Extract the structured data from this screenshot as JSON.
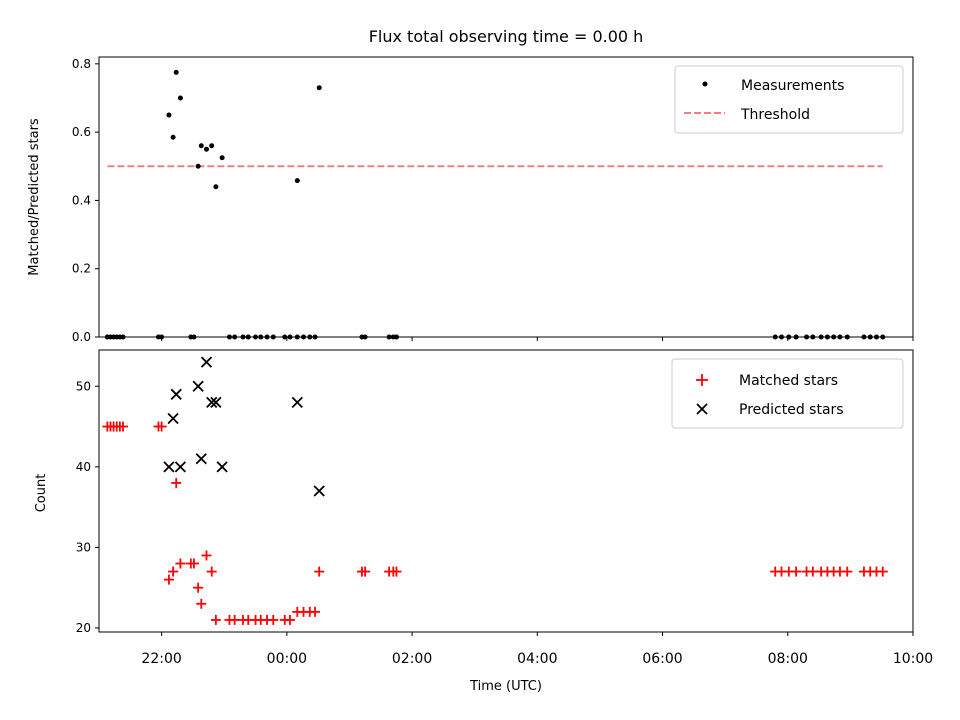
{
  "chart_data": [
    {
      "type": "scatter",
      "title": "Flux total observing time = 0.00 h",
      "xlabel": "",
      "ylabel": "Matched/Predicted stars",
      "xlim": [
        "21:00",
        "10:00"
      ],
      "ylim": [
        0,
        0.82
      ],
      "yticks": [
        "0.0",
        "0.2",
        "0.4",
        "0.6",
        "0.8"
      ],
      "legend_position": "top-right",
      "colors": {
        "Measurements": "#000000",
        "Threshold": "#f08080"
      },
      "series": [
        {
          "name": "Measurements",
          "marker": "dot",
          "points": [
            [
              "21:08",
              0
            ],
            [
              "21:11",
              0
            ],
            [
              "21:14",
              0
            ],
            [
              "21:17",
              0
            ],
            [
              "21:20",
              0
            ],
            [
              "21:23",
              0
            ],
            [
              "21:57",
              0
            ],
            [
              "22:00",
              0
            ],
            [
              "22:07",
              0.65
            ],
            [
              "22:11",
              0.585
            ],
            [
              "22:14",
              0.775
            ],
            [
              "22:18",
              0.7
            ],
            [
              "22:28",
              0
            ],
            [
              "22:31",
              0
            ],
            [
              "22:35",
              0.5
            ],
            [
              "22:38",
              0.56
            ],
            [
              "22:43",
              0.55
            ],
            [
              "22:48",
              0.56
            ],
            [
              "22:52",
              0.44
            ],
            [
              "22:58",
              0.525
            ],
            [
              "23:05",
              0
            ],
            [
              "23:10",
              0
            ],
            [
              "23:18",
              0
            ],
            [
              "23:23",
              0
            ],
            [
              "23:30",
              0
            ],
            [
              "23:35",
              0
            ],
            [
              "23:41",
              0
            ],
            [
              "23:47",
              0
            ],
            [
              "23:58",
              0
            ],
            [
              "24:03",
              0
            ],
            [
              "24:10",
              0
            ],
            [
              "24:16",
              0
            ],
            [
              "24:22",
              0
            ],
            [
              "24:27",
              0
            ],
            [
              "24:10",
              0.458
            ],
            [
              "24:31",
              0.73
            ],
            [
              "25:12",
              0
            ],
            [
              "25:15",
              0
            ],
            [
              "25:38",
              0
            ],
            [
              "25:42",
              0
            ],
            [
              "25:45",
              0
            ],
            [
              "31:48",
              0
            ],
            [
              "31:54",
              0
            ],
            [
              "32:01",
              0
            ],
            [
              "32:08",
              0
            ],
            [
              "32:18",
              0
            ],
            [
              "32:24",
              0
            ],
            [
              "32:32",
              0
            ],
            [
              "32:38",
              0
            ],
            [
              "32:44",
              0
            ],
            [
              "32:50",
              0
            ],
            [
              "32:57",
              0
            ],
            [
              "33:13",
              0
            ],
            [
              "33:19",
              0
            ],
            [
              "33:25",
              0
            ],
            [
              "33:31",
              0
            ]
          ]
        },
        {
          "name": "Threshold",
          "line": "dashed",
          "points": [
            [
              "21:08",
              0.5
            ],
            [
              "33:31",
              0.5
            ]
          ]
        }
      ],
      "xticks": [
        "22:00",
        "00:00",
        "02:00",
        "04:00",
        "06:00",
        "08:00",
        "10:00"
      ]
    },
    {
      "type": "scatter",
      "title": "",
      "xlabel": "Time (UTC)",
      "ylabel": "Count",
      "xlim": [
        "21:00",
        "10:00"
      ],
      "ylim": [
        19.5,
        54.5
      ],
      "yticks": [
        "20",
        "30",
        "40",
        "50"
      ],
      "xticks": [
        "22:00",
        "00:00",
        "02:00",
        "04:00",
        "06:00",
        "08:00",
        "10:00"
      ],
      "legend_position": "top-right",
      "colors": {
        "Matched stars": "#ff0000",
        "Predicted stars": "#000000"
      },
      "series": [
        {
          "name": "Matched stars",
          "marker": "plus",
          "points": [
            [
              "21:08",
              45
            ],
            [
              "21:11",
              45
            ],
            [
              "21:14",
              45
            ],
            [
              "21:17",
              45
            ],
            [
              "21:20",
              45
            ],
            [
              "21:23",
              45
            ],
            [
              "21:57",
              45
            ],
            [
              "22:00",
              45
            ],
            [
              "22:07",
              26
            ],
            [
              "22:11",
              27
            ],
            [
              "22:14",
              38
            ],
            [
              "22:18",
              28
            ],
            [
              "22:28",
              28
            ],
            [
              "22:31",
              28
            ],
            [
              "22:35",
              25
            ],
            [
              "22:38",
              23
            ],
            [
              "22:43",
              29
            ],
            [
              "22:48",
              27
            ],
            [
              "22:52",
              21
            ],
            [
              "23:05",
              21
            ],
            [
              "23:10",
              21
            ],
            [
              "23:18",
              21
            ],
            [
              "23:23",
              21
            ],
            [
              "23:30",
              21
            ],
            [
              "23:35",
              21
            ],
            [
              "23:41",
              21
            ],
            [
              "23:47",
              21
            ],
            [
              "23:58",
              21
            ],
            [
              "24:03",
              21
            ],
            [
              "24:10",
              22
            ],
            [
              "24:16",
              22
            ],
            [
              "24:22",
              22
            ],
            [
              "24:27",
              22
            ],
            [
              "24:31",
              27
            ],
            [
              "25:12",
              27
            ],
            [
              "25:15",
              27
            ],
            [
              "25:38",
              27
            ],
            [
              "25:42",
              27
            ],
            [
              "25:45",
              27
            ],
            [
              "31:48",
              27
            ],
            [
              "31:54",
              27
            ],
            [
              "32:01",
              27
            ],
            [
              "32:08",
              27
            ],
            [
              "32:18",
              27
            ],
            [
              "32:24",
              27
            ],
            [
              "32:32",
              27
            ],
            [
              "32:38",
              27
            ],
            [
              "32:44",
              27
            ],
            [
              "32:50",
              27
            ],
            [
              "32:57",
              27
            ],
            [
              "33:13",
              27
            ],
            [
              "33:19",
              27
            ],
            [
              "33:25",
              27
            ],
            [
              "33:31",
              27
            ]
          ]
        },
        {
          "name": "Predicted stars",
          "marker": "x",
          "points": [
            [
              "22:07",
              40
            ],
            [
              "22:11",
              46
            ],
            [
              "22:14",
              49
            ],
            [
              "22:18",
              40
            ],
            [
              "22:35",
              50
            ],
            [
              "22:38",
              41
            ],
            [
              "22:43",
              53
            ],
            [
              "22:48",
              48
            ],
            [
              "22:52",
              48
            ],
            [
              "22:58",
              40
            ],
            [
              "24:10",
              48
            ],
            [
              "24:31",
              37
            ]
          ]
        }
      ]
    }
  ]
}
